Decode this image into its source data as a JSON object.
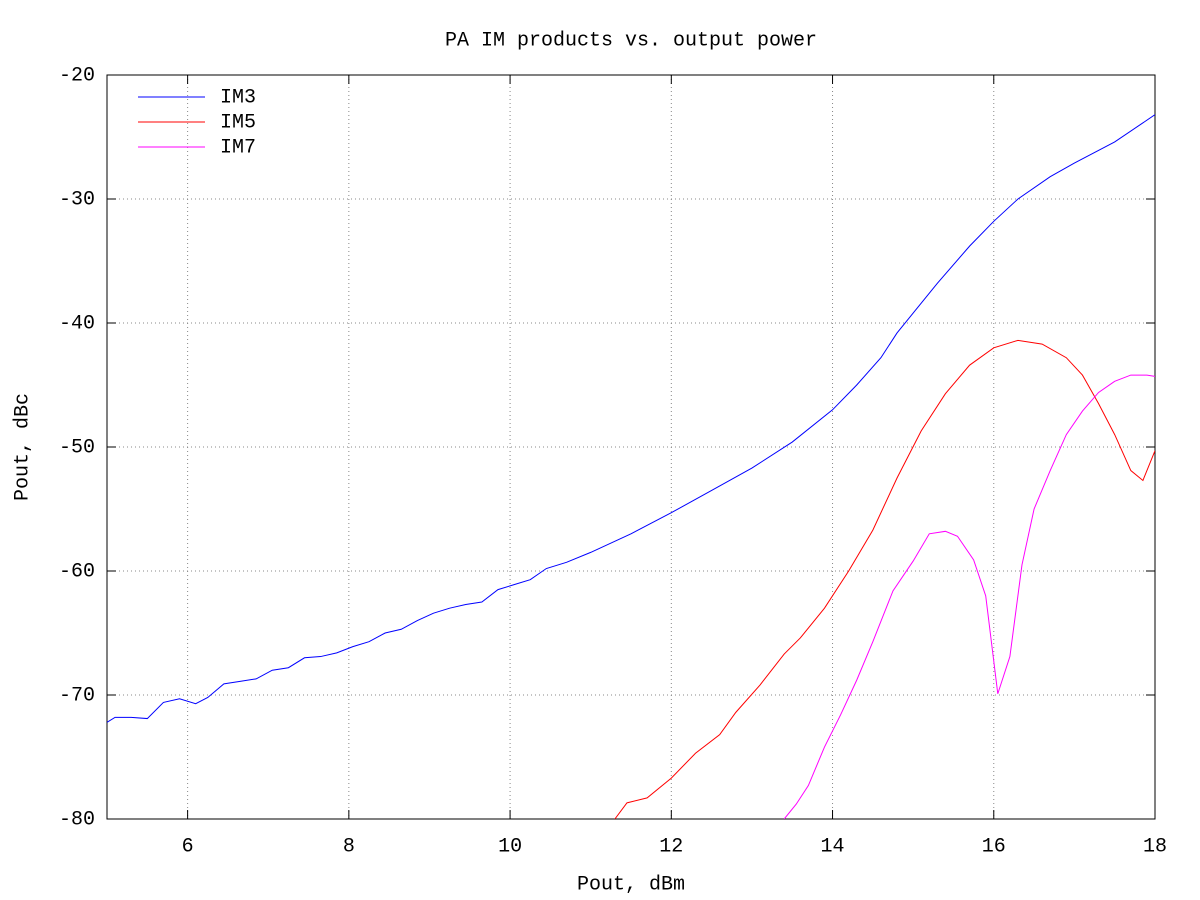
{
  "chart_data": {
    "type": "line",
    "title": "PA IM products vs. output power",
    "x_label": "Pout, dBm",
    "y_label": "Pout, dBc",
    "xlim": [
      5,
      18
    ],
    "xticks": [
      6,
      8,
      10,
      12,
      14,
      16,
      18
    ],
    "ylim": [
      -80,
      -20
    ],
    "yticks": [
      -80,
      -70,
      -60,
      -50,
      -40,
      -30,
      -20
    ],
    "grid": true,
    "legend": "top-left",
    "series": [
      {
        "name": "IM3",
        "color": "#0000ff",
        "x": [
          5.0,
          5.1,
          5.3,
          5.5,
          5.7,
          5.9,
          6.1,
          6.25,
          6.45,
          6.65,
          6.85,
          7.05,
          7.25,
          7.45,
          7.65,
          7.85,
          8.05,
          8.25,
          8.45,
          8.65,
          8.85,
          9.05,
          9.25,
          9.45,
          9.65,
          9.85,
          10.05,
          10.25,
          10.45,
          10.7,
          11.0,
          11.5,
          12.0,
          12.5,
          13.0,
          13.5,
          14.0,
          14.3,
          14.6,
          14.8,
          15.0,
          15.3,
          15.7,
          16.0,
          16.3,
          16.7,
          17.0,
          17.5,
          18.0
        ],
        "values": [
          -72.2,
          -71.8,
          -71.8,
          -71.9,
          -70.6,
          -70.3,
          -70.7,
          -70.2,
          -69.1,
          -68.9,
          -68.7,
          -68.0,
          -67.8,
          -67.0,
          -66.9,
          -66.6,
          -66.1,
          -65.7,
          -65.0,
          -64.7,
          -64.0,
          -63.4,
          -63.0,
          -62.7,
          -62.5,
          -61.5,
          -61.1,
          -60.7,
          -59.8,
          -59.3,
          -58.5,
          -57.0,
          -55.3,
          -53.5,
          -51.7,
          -49.6,
          -47.0,
          -45.0,
          -42.8,
          -40.8,
          -39.2,
          -36.8,
          -33.8,
          -31.8,
          -30.0,
          -28.2,
          -27.1,
          -25.4,
          -23.2
        ]
      },
      {
        "name": "IM5",
        "color": "#ff0000",
        "x": [
          11.3,
          11.45,
          11.7,
          12.0,
          12.3,
          12.6,
          12.8,
          13.1,
          13.4,
          13.6,
          13.9,
          14.2,
          14.5,
          14.8,
          15.1,
          15.4,
          15.7,
          16.0,
          16.3,
          16.6,
          16.9,
          17.1,
          17.3,
          17.5,
          17.7,
          17.85,
          18.0
        ],
        "values": [
          -80,
          -78.7,
          -78.3,
          -76.7,
          -74.7,
          -73.2,
          -71.4,
          -69.2,
          -66.7,
          -65.4,
          -63.0,
          -60.0,
          -56.7,
          -52.5,
          -48.7,
          -45.7,
          -43.4,
          -42.0,
          -41.4,
          -41.7,
          -42.8,
          -44.2,
          -46.5,
          -49.0,
          -51.9,
          -52.7,
          -50.3
        ]
      },
      {
        "name": "IM7",
        "color": "#ff00ff",
        "x": [
          13.4,
          13.55,
          13.7,
          13.9,
          14.1,
          14.3,
          14.5,
          14.75,
          15.0,
          15.2,
          15.4,
          15.55,
          15.75,
          15.9,
          16.05,
          16.2,
          16.35,
          16.5,
          16.7,
          16.9,
          17.1,
          17.3,
          17.5,
          17.7,
          17.9,
          18.0
        ],
        "values": [
          -80,
          -78.8,
          -77.3,
          -74.2,
          -71.6,
          -68.8,
          -65.7,
          -61.6,
          -59.2,
          -57.0,
          -56.8,
          -57.2,
          -59.1,
          -62.0,
          -69.9,
          -66.9,
          -59.5,
          -55.0,
          -51.9,
          -49.0,
          -47.1,
          -45.6,
          -44.7,
          -44.2,
          -44.2,
          -44.3
        ]
      }
    ]
  }
}
